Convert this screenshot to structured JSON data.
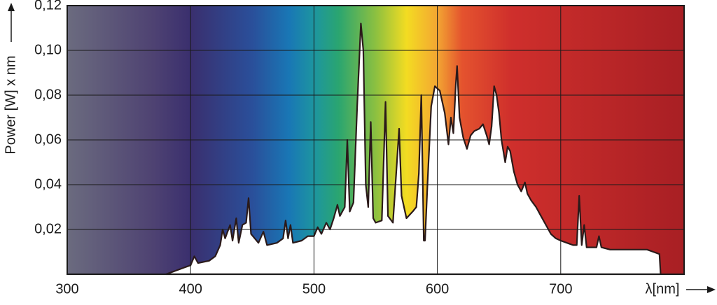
{
  "chart_data": {
    "type": "area",
    "y_label": "Power [W] x nm",
    "x_label": "λ[nm]",
    "xlim": [
      300,
      800
    ],
    "xticks": [
      300,
      400,
      500,
      600,
      700
    ],
    "ylim": [
      0,
      0.12
    ],
    "yticks": [
      {
        "value": 0.02,
        "label": "0,02"
      },
      {
        "value": 0.04,
        "label": "0,04"
      },
      {
        "value": 0.06,
        "label": "0,06"
      },
      {
        "value": 0.08,
        "label": "0,08"
      },
      {
        "value": 0.1,
        "label": "0,10"
      },
      {
        "value": 0.12,
        "label": "0,12"
      }
    ],
    "grid": true,
    "color": "#2b1a1a",
    "x": [
      380,
      385,
      390,
      395,
      400,
      403,
      406,
      415,
      420,
      424,
      426,
      428,
      432,
      434,
      437,
      439,
      442,
      445,
      447,
      449,
      455,
      459,
      462,
      470,
      475,
      477,
      479,
      481,
      483,
      490,
      495,
      500,
      503,
      506,
      510,
      513,
      516,
      519,
      521,
      525,
      527,
      529,
      532,
      535,
      538,
      540,
      542,
      544,
      546,
      548,
      550,
      555,
      558,
      560,
      564,
      569,
      571,
      575,
      580,
      583,
      585,
      587,
      589,
      590,
      592,
      595,
      598,
      602,
      606,
      609,
      611,
      613,
      615,
      616,
      618,
      621,
      624,
      627,
      630,
      634,
      637,
      640,
      642,
      644,
      646,
      648,
      650,
      652,
      655,
      657,
      659,
      662,
      665,
      668,
      671,
      673,
      676,
      680,
      684,
      688,
      692,
      696,
      700,
      705,
      710,
      713,
      715,
      717,
      719,
      721,
      725,
      729,
      731,
      733,
      740,
      750,
      760,
      770,
      775,
      780,
      781
    ],
    "values": [
      0,
      0.001,
      0.002,
      0.003,
      0.004,
      0.008,
      0.005,
      0.006,
      0.008,
      0.013,
      0.02,
      0.016,
      0.022,
      0.015,
      0.025,
      0.014,
      0.022,
      0.023,
      0.034,
      0.018,
      0.014,
      0.019,
      0.013,
      0.014,
      0.016,
      0.024,
      0.016,
      0.022,
      0.014,
      0.015,
      0.017,
      0.017,
      0.021,
      0.018,
      0.023,
      0.02,
      0.025,
      0.031,
      0.026,
      0.03,
      0.06,
      0.028,
      0.032,
      0.075,
      0.112,
      0.1,
      0.04,
      0.03,
      0.068,
      0.025,
      0.023,
      0.024,
      0.077,
      0.026,
      0.023,
      0.065,
      0.035,
      0.025,
      0.028,
      0.03,
      0.045,
      0.08,
      0.015,
      0.015,
      0.04,
      0.075,
      0.084,
      0.082,
      0.072,
      0.058,
      0.07,
      0.063,
      0.085,
      0.093,
      0.07,
      0.061,
      0.056,
      0.062,
      0.064,
      0.065,
      0.067,
      0.062,
      0.058,
      0.066,
      0.084,
      0.08,
      0.072,
      0.06,
      0.05,
      0.057,
      0.055,
      0.046,
      0.04,
      0.037,
      0.041,
      0.036,
      0.033,
      0.03,
      0.026,
      0.022,
      0.018,
      0.016,
      0.015,
      0.014,
      0.013,
      0.013,
      0.035,
      0.013,
      0.022,
      0.012,
      0.012,
      0.012,
      0.017,
      0.012,
      0.011,
      0.011,
      0.011,
      0.011,
      0.01,
      0.009,
      0
    ]
  }
}
